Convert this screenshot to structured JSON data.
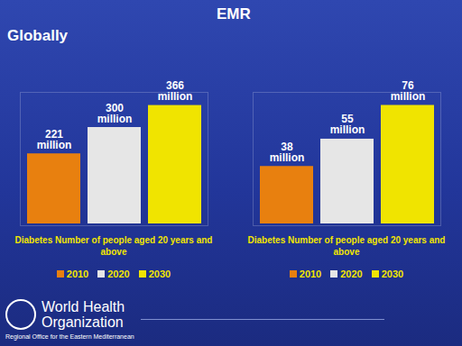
{
  "chart_data": [
    {
      "type": "bar",
      "title": "Globally",
      "x_label": "Diabetes Number of people aged 20 years and above",
      "categories": [
        "Diabetes Number of people aged 20 years and above"
      ],
      "series": [
        {
          "name": "2010",
          "color": "#e8800f",
          "values": [
            221
          ],
          "value_labels": [
            "221 million"
          ]
        },
        {
          "name": "2020",
          "color": "#e6e6e6",
          "values": [
            300
          ],
          "value_labels": [
            "300 million"
          ]
        },
        {
          "name": "2030",
          "color": "#f0e400",
          "values": [
            366
          ],
          "value_labels": [
            "366 million"
          ]
        }
      ],
      "ylim": [
        0,
        400
      ],
      "yticks": [],
      "data_labels": true,
      "tick_labels": false,
      "legend": "bottom"
    },
    {
      "type": "bar",
      "title": "EMR",
      "x_label": "Diabetes Number of people aged 20 years and above",
      "categories": [
        "Diabetes Number of people aged 20 years and above"
      ],
      "series": [
        {
          "name": "2010",
          "color": "#e8800f",
          "values": [
            38
          ],
          "value_labels": [
            "38 million"
          ]
        },
        {
          "name": "2020",
          "color": "#e6e6e6",
          "values": [
            55
          ],
          "value_labels": [
            "55 million"
          ]
        },
        {
          "name": "2030",
          "color": "#f0e400",
          "values": [
            76
          ],
          "value_labels": [
            "76 million"
          ]
        }
      ],
      "ylim": [
        0,
        83
      ],
      "yticks": [],
      "data_labels": true,
      "tick_labels": false,
      "legend": "bottom"
    }
  ],
  "footer": {
    "organization": "World Health Organization",
    "office": "Regional Office for the Eastern Mediterranean"
  }
}
